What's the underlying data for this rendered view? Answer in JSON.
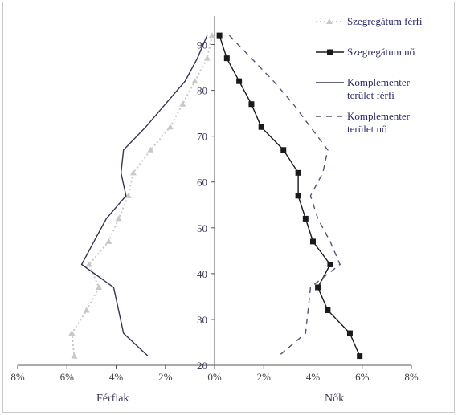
{
  "chart_data": {
    "type": "line",
    "title": "",
    "xlabel_left": "Férfiak",
    "xlabel_right": "Nők",
    "x_tick_labels": [
      "8%",
      "6%",
      "4%",
      "2%",
      "0%",
      "2%",
      "4%",
      "6%",
      "8%"
    ],
    "y_tick_labels": [
      "20",
      "30",
      "40",
      "50",
      "60",
      "70",
      "80",
      "90"
    ],
    "xlim": [
      -8,
      8
    ],
    "ylim": [
      20,
      95
    ],
    "legend_position": "top-right",
    "series": [
      {
        "name": "Szegregátum férfi",
        "side": "left",
        "style": "dotted",
        "color": "#c8c8c8",
        "marker": "triangle",
        "points": [
          [
            0.1,
            92
          ],
          [
            0.3,
            87
          ],
          [
            0.8,
            82
          ],
          [
            1.3,
            77
          ],
          [
            1.8,
            72
          ],
          [
            2.6,
            67
          ],
          [
            3.3,
            62
          ],
          [
            3.5,
            57
          ],
          [
            3.9,
            52
          ],
          [
            4.3,
            47
          ],
          [
            5.1,
            42
          ],
          [
            4.7,
            37
          ],
          [
            5.2,
            32
          ],
          [
            5.8,
            27
          ],
          [
            5.7,
            22
          ]
        ]
      },
      {
        "name": "Szegregátum nő",
        "side": "right",
        "style": "solid",
        "color": "#1a1a1a",
        "marker": "square",
        "points": [
          [
            0.2,
            92
          ],
          [
            0.5,
            87
          ],
          [
            1.0,
            82
          ],
          [
            1.5,
            77
          ],
          [
            1.9,
            72
          ],
          [
            2.8,
            67
          ],
          [
            3.4,
            62
          ],
          [
            3.4,
            57
          ],
          [
            3.7,
            52
          ],
          [
            4.0,
            47
          ],
          [
            4.7,
            42
          ],
          [
            4.2,
            37
          ],
          [
            4.6,
            32
          ],
          [
            5.5,
            27
          ],
          [
            5.9,
            22
          ]
        ]
      },
      {
        "name": "Komplementer terület férfi",
        "side": "left",
        "style": "solid",
        "color": "#333355",
        "marker": "none",
        "points": [
          [
            0.3,
            92
          ],
          [
            0.7,
            87
          ],
          [
            1.2,
            82
          ],
          [
            2.0,
            77
          ],
          [
            2.8,
            72
          ],
          [
            3.7,
            67
          ],
          [
            3.8,
            62
          ],
          [
            3.6,
            57
          ],
          [
            4.4,
            52
          ],
          [
            4.9,
            47
          ],
          [
            5.4,
            42
          ],
          [
            4.1,
            37
          ],
          [
            3.9,
            32
          ],
          [
            3.7,
            27
          ],
          [
            2.7,
            22
          ]
        ]
      },
      {
        "name": "Komplementer terület nő",
        "side": "right",
        "style": "dashed",
        "color": "#555577",
        "marker": "none",
        "points": [
          [
            0.6,
            92
          ],
          [
            1.5,
            87
          ],
          [
            2.4,
            82
          ],
          [
            3.2,
            77
          ],
          [
            3.9,
            72
          ],
          [
            4.6,
            67
          ],
          [
            4.4,
            62
          ],
          [
            3.9,
            57
          ],
          [
            4.2,
            52
          ],
          [
            4.7,
            47
          ],
          [
            5.1,
            42
          ],
          [
            3.9,
            37
          ],
          [
            3.8,
            32
          ],
          [
            3.7,
            27
          ],
          [
            2.6,
            22
          ]
        ]
      }
    ]
  }
}
